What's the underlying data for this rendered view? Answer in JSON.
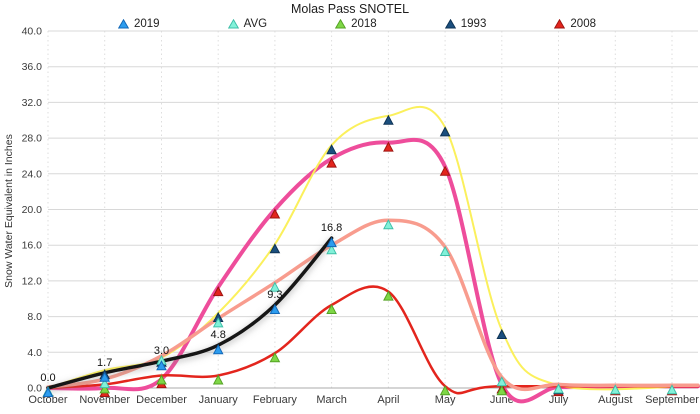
{
  "chart_data": {
    "type": "line",
    "title": "Molas Pass SNOTEL",
    "ylabel": "Snow Water Equivalent in Inches",
    "ylim": [
      0,
      40
    ],
    "ytick_step": 4,
    "y_tick_labels": [
      "40.0",
      "36.0",
      "32.0",
      "28.0",
      "24.0",
      "20.0",
      "16.0",
      "12.0",
      "8.0",
      "4.0",
      "0.0"
    ],
    "categories": [
      "October",
      "November",
      "December",
      "January",
      "February",
      "March",
      "April",
      "May",
      "June",
      "July",
      "August",
      "September"
    ],
    "grid": {
      "horizontal": "solid",
      "vertical": "dashed"
    },
    "legend_position": "top",
    "series": [
      {
        "name": "2019",
        "line_color": "#141414",
        "line_width": 3.5,
        "marker_color": "#2C9CEE",
        "marker_stroke": "#1268B8",
        "shadow": true,
        "extends_to_edge": false,
        "values": [
          0.0,
          1.7,
          3.0,
          4.8,
          9.3,
          16.8,
          null,
          null,
          null,
          null,
          null,
          null
        ],
        "point_labels": [
          "0.0",
          "1.7",
          "3.0",
          "4.8",
          "9.3",
          "16.8"
        ]
      },
      {
        "name": "AVG",
        "line_color": "#F89C8E",
        "line_width": 3.5,
        "marker_color": "#82F1D9",
        "marker_stroke": "#3FBFA8",
        "shadow": false,
        "extends_to_edge": true,
        "values": [
          0.1,
          1.0,
          3.6,
          7.8,
          11.8,
          16.0,
          18.8,
          15.8,
          1.2,
          0.4,
          0.3,
          0.3
        ]
      },
      {
        "name": "2018",
        "line_color": "#E3251D",
        "line_width": 2.5,
        "marker_color": "#7ED746",
        "marker_stroke": "#55A224",
        "shadow": false,
        "extends_to_edge": true,
        "values": [
          0.0,
          0.4,
          1.4,
          1.4,
          3.9,
          9.3,
          10.8,
          0.2,
          0.2,
          null,
          null,
          null
        ]
      },
      {
        "name": "1993",
        "line_color": "#FBF05C",
        "line_width": 2.0,
        "marker_color": "#1B4F7E",
        "marker_stroke": "#0E3355",
        "shadow": false,
        "extends_to_edge": true,
        "values": [
          0.0,
          2.0,
          3.4,
          8.4,
          16.1,
          27.2,
          30.5,
          29.2,
          6.5,
          0.3,
          null,
          null
        ]
      },
      {
        "name": "2008",
        "line_color": "#EE4D9B",
        "line_width": 4.0,
        "marker_color": "#E3251D",
        "marker_stroke": "#9E1410",
        "shadow": false,
        "extends_to_edge": true,
        "values": [
          0.0,
          0.0,
          1.0,
          11.3,
          20.0,
          25.7,
          27.5,
          24.8,
          0.4,
          0.1,
          0.2,
          0.2
        ]
      }
    ],
    "draw_order": [
      "2008",
      "1993",
      "2018",
      "AVG",
      "2019"
    ],
    "colors": {
      "background": "#ffffff",
      "h_gridline": "#D8D8D8",
      "v_gridline": "#DEDEDE",
      "axis_line": "#ABABAB",
      "tick_text": "#3a3a3a",
      "point_label_text": "#111111"
    }
  }
}
